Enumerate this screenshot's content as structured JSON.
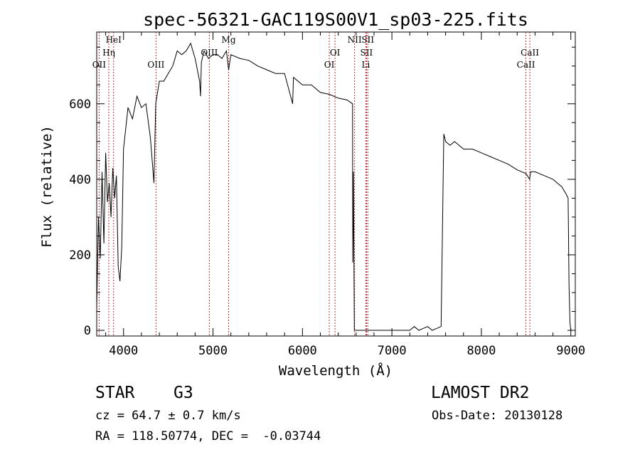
{
  "chart_data": {
    "type": "line",
    "title": "spec-56321-GAC119S00V1_sp03-225.fits",
    "xlabel": "Wavelength (Å)",
    "ylabel": "Flux (relative)",
    "xlim": [
      3700,
      9050
    ],
    "ylim": [
      -15,
      790
    ],
    "x_ticks": [
      4000,
      5000,
      6000,
      7000,
      8000,
      9000
    ],
    "y_ticks": [
      0,
      200,
      400,
      600
    ],
    "x_tick_labels": [
      "4000",
      "5000",
      "6000",
      "7000",
      "8000",
      "9000"
    ],
    "y_tick_labels": [
      "0",
      "200",
      "400",
      "600"
    ],
    "grid": false,
    "line_color": "#000000",
    "marker_color": "#b03030",
    "spectrum": {
      "x": [
        3700,
        3720,
        3740,
        3760,
        3780,
        3800,
        3820,
        3840,
        3860,
        3880,
        3900,
        3920,
        3940,
        3960,
        3980,
        4000,
        4050,
        4100,
        4150,
        4200,
        4250,
        4300,
        4340,
        4360,
        4400,
        4450,
        4500,
        4550,
        4600,
        4650,
        4700,
        4750,
        4800,
        4850,
        4861,
        4870,
        4900,
        4950,
        5000,
        5050,
        5100,
        5150,
        5175,
        5200,
        5300,
        5400,
        5500,
        5600,
        5700,
        5800,
        5890,
        5900,
        6000,
        6100,
        6200,
        6300,
        6400,
        6500,
        6560,
        6563,
        6570,
        6580,
        6600,
        6650,
        6700,
        6800,
        6900,
        7000,
        7100,
        7150,
        7200,
        7250,
        7300,
        7350,
        7400,
        7450,
        7500,
        7550,
        7580,
        7600,
        7650,
        7700,
        7800,
        7900,
        8000,
        8100,
        8200,
        8300,
        8400,
        8500,
        8540,
        8550,
        8600,
        8700,
        8800,
        8900,
        8950,
        8970,
        8980,
        8990,
        9000
      ],
      "y": [
        60,
        300,
        190,
        420,
        230,
        470,
        340,
        390,
        300,
        430,
        350,
        410,
        170,
        130,
        220,
        480,
        590,
        560,
        620,
        590,
        600,
        510,
        390,
        600,
        660,
        660,
        680,
        700,
        740,
        730,
        740,
        760,
        720,
        660,
        620,
        710,
        740,
        720,
        730,
        730,
        720,
        740,
        690,
        730,
        720,
        715,
        700,
        690,
        680,
        680,
        600,
        670,
        650,
        650,
        630,
        625,
        615,
        610,
        600,
        180,
        420,
        0,
        0,
        0,
        0,
        0,
        0,
        0,
        0,
        0,
        0,
        10,
        0,
        5,
        10,
        0,
        5,
        10,
        520,
        500,
        490,
        500,
        480,
        480,
        470,
        460,
        450,
        440,
        425,
        415,
        400,
        420,
        420,
        410,
        400,
        380,
        360,
        350,
        120,
        20,
        0
      ]
    },
    "lines": [
      {
        "label": "OII",
        "x": 3727,
        "row": 2
      },
      {
        "label": "Hη",
        "x": 3835,
        "row": 1
      },
      {
        "label": "HeI",
        "x": 3889,
        "row": 0
      },
      {
        "label": "OIII",
        "x": 4363,
        "row": 2
      },
      {
        "label": "OIII",
        "x": 4959,
        "row": 1
      },
      {
        "label": "Mg",
        "x": 5175,
        "row": 0
      },
      {
        "label": "OI",
        "x": 6300,
        "row": 2
      },
      {
        "label": "OI",
        "x": 6364,
        "row": 1
      },
      {
        "label": "NII",
        "x": 6583,
        "row": 0
      },
      {
        "label": "Li",
        "x": 6708,
        "row": 2
      },
      {
        "label": "SII",
        "x": 6716,
        "row": 1
      },
      {
        "label": "SII",
        "x": 6731,
        "row": 0
      },
      {
        "label": "CaII",
        "x": 8498,
        "row": 2
      },
      {
        "label": "CaII",
        "x": 8542,
        "row": 1
      }
    ]
  },
  "info": {
    "class": "STAR",
    "subclass": "G3",
    "survey": "LAMOST DR2",
    "cz": "cz = 64.7 ± 0.7 km/s",
    "obs_date": "Obs-Date: 20130128",
    "radec": "RA = 118.50774, DEC =  -0.03744"
  }
}
